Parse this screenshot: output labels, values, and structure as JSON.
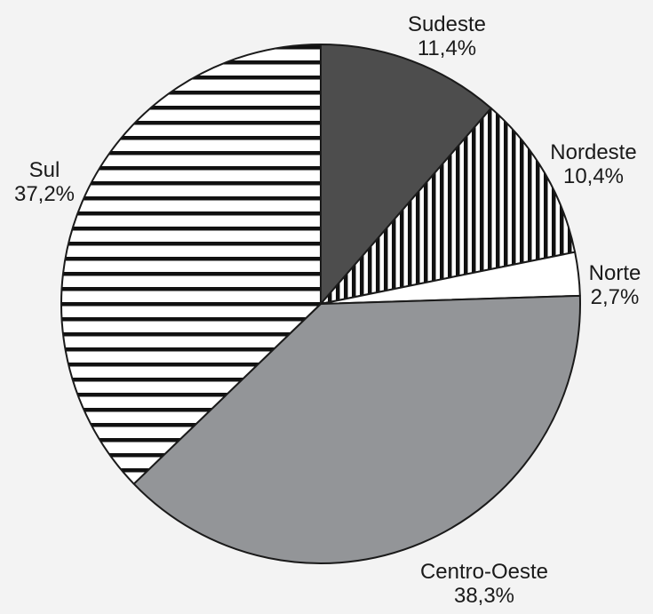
{
  "chart_data": {
    "type": "pie",
    "title": "",
    "slices": [
      {
        "name": "Sudeste",
        "value": 11.4,
        "value_label": "11,4%",
        "fill": "#4d4d4d",
        "pattern": "solid"
      },
      {
        "name": "Nordeste",
        "value": 10.4,
        "value_label": "10,4%",
        "fill": "#ffffff",
        "pattern": "vertical-stripes"
      },
      {
        "name": "Norte",
        "value": 2.7,
        "value_label": "2,7%",
        "fill": "#ffffff",
        "pattern": "solid"
      },
      {
        "name": "Centro-Oeste",
        "value": 38.3,
        "value_label": "38,3%",
        "fill": "#939598",
        "pattern": "solid"
      },
      {
        "name": "Sul",
        "value": 37.2,
        "value_label": "37,2%",
        "fill": "#ffffff",
        "pattern": "horizontal-stripes"
      }
    ],
    "start": "12 o'clock",
    "direction": "clockwise",
    "legend": "none",
    "labels": "outside"
  }
}
